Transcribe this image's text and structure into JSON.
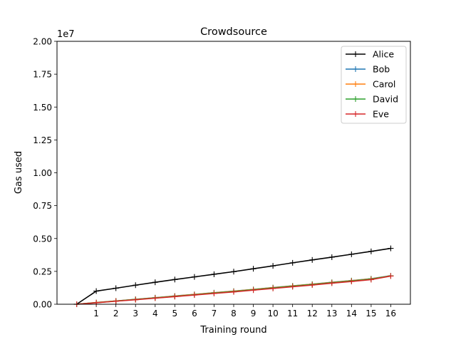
{
  "chart_data": {
    "type": "line",
    "title": "Crowdsource",
    "xlabel": "Training round",
    "ylabel": "Gas used",
    "y_offset_label": "1e7",
    "x": [
      0,
      1,
      2,
      3,
      4,
      5,
      6,
      7,
      8,
      9,
      10,
      11,
      12,
      13,
      14,
      15,
      16
    ],
    "xticks": [
      "1",
      "2",
      "3",
      "4",
      "5",
      "6",
      "7",
      "8",
      "9",
      "10",
      "11",
      "12",
      "13",
      "14",
      "15",
      "16"
    ],
    "xlim": [
      -1,
      17
    ],
    "ylim": [
      0,
      2.0
    ],
    "yticks": [
      "0.00",
      "0.25",
      "0.50",
      "0.75",
      "1.00",
      "1.25",
      "1.50",
      "1.75",
      "2.00"
    ],
    "grid": false,
    "legend_position": "top-right",
    "series": [
      {
        "name": "Alice",
        "color": "#000000",
        "values": [
          0,
          0.1,
          0.122,
          0.145,
          0.167,
          0.188,
          0.208,
          0.228,
          0.248,
          0.27,
          0.292,
          0.315,
          0.337,
          0.358,
          0.38,
          0.402,
          0.425
        ]
      },
      {
        "name": "Bob",
        "color": "#1f77b4",
        "values": [
          0,
          0.013,
          0.025,
          0.038,
          0.05,
          0.063,
          0.075,
          0.088,
          0.1,
          0.113,
          0.127,
          0.14,
          0.153,
          0.167,
          0.18,
          0.194,
          0.217
        ]
      },
      {
        "name": "Carol",
        "color": "#ff7f0e",
        "values": [
          0,
          0.013,
          0.025,
          0.037,
          0.049,
          0.062,
          0.074,
          0.087,
          0.099,
          0.112,
          0.126,
          0.139,
          0.152,
          0.166,
          0.179,
          0.193,
          0.216
        ]
      },
      {
        "name": "David",
        "color": "#2ca02c",
        "values": [
          0,
          0.012,
          0.024,
          0.036,
          0.048,
          0.06,
          0.072,
          0.085,
          0.097,
          0.11,
          0.124,
          0.137,
          0.15,
          0.164,
          0.177,
          0.191,
          0.215
        ]
      },
      {
        "name": "Eve",
        "color": "#d62728",
        "values": [
          0,
          0.011,
          0.023,
          0.034,
          0.046,
          0.058,
          0.07,
          0.082,
          0.094,
          0.107,
          0.12,
          0.133,
          0.146,
          0.16,
          0.173,
          0.187,
          0.214
        ]
      }
    ]
  }
}
